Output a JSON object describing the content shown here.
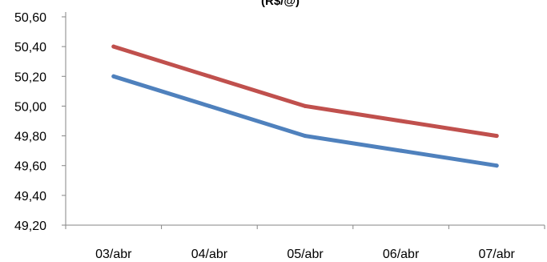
{
  "chart_data": {
    "type": "line",
    "title": "(R$/@)",
    "categories": [
      "03/abr",
      "04/abr",
      "05/abr",
      "06/abr",
      "07/abr"
    ],
    "series": [
      {
        "color": "#C0504D",
        "values": [
          50.4,
          50.2,
          50.0,
          49.9,
          49.8
        ]
      },
      {
        "color": "#4F81BD",
        "values": [
          50.2,
          50.0,
          49.8,
          49.7,
          49.6
        ]
      }
    ],
    "yticks": [
      "49,20",
      "49,40",
      "49,60",
      "49,80",
      "50,00",
      "50,20",
      "50,40",
      "50,60"
    ],
    "ylim": [
      49.2,
      50.6
    ],
    "grid": false,
    "legend": "none"
  }
}
